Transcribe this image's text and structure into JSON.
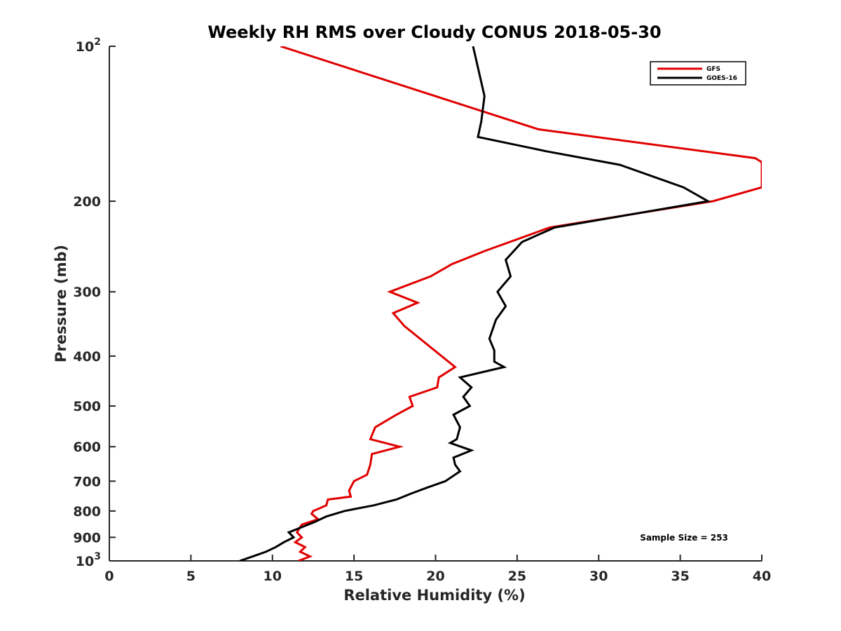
{
  "chart_data": {
    "type": "line",
    "title": "Weekly RH RMS over Cloudy CONUS 2018-05-30",
    "xlabel": "Relative Humidity (%)",
    "ylabel": "Pressure (mb)",
    "xlim": [
      0,
      40
    ],
    "ylim": [
      100,
      1000
    ],
    "y_scale": "log",
    "y_reversed": true,
    "grid": false,
    "legend_position": "top-right",
    "x_ticks": [
      0,
      5,
      10,
      15,
      20,
      25,
      30,
      35,
      40
    ],
    "y_ticks": [
      {
        "value": 100,
        "base": "10",
        "exp": "2"
      },
      {
        "value": 200,
        "label": "200"
      },
      {
        "value": 300,
        "label": "300"
      },
      {
        "value": 400,
        "label": "400"
      },
      {
        "value": 500,
        "label": "500"
      },
      {
        "value": 600,
        "label": "600"
      },
      {
        "value": 700,
        "label": "700"
      },
      {
        "value": 800,
        "label": "800"
      },
      {
        "value": 900,
        "label": "900"
      },
      {
        "value": 1000,
        "base": "10",
        "exp": "3"
      }
    ],
    "series": [
      {
        "name": "GFS",
        "color": "#e00000",
        "points": [
          [
            10.5,
            100
          ],
          [
            26.3,
            145
          ],
          [
            39.6,
            165
          ],
          [
            40.0,
            168
          ],
          [
            40.0,
            188
          ],
          [
            37.0,
            200
          ],
          [
            27.0,
            225
          ],
          [
            23.0,
            250
          ],
          [
            21.0,
            265
          ],
          [
            19.7,
            280
          ],
          [
            17.2,
            300
          ],
          [
            18.9,
            315
          ],
          [
            17.4,
            330
          ],
          [
            18.1,
            350
          ],
          [
            21.2,
            420
          ],
          [
            20.2,
            440
          ],
          [
            20.1,
            460
          ],
          [
            18.4,
            480
          ],
          [
            18.6,
            500
          ],
          [
            17.6,
            520
          ],
          [
            16.3,
            550
          ],
          [
            16.0,
            580
          ],
          [
            17.8,
            600
          ],
          [
            16.1,
            620
          ],
          [
            16.0,
            650
          ],
          [
            15.8,
            680
          ],
          [
            15.0,
            700
          ],
          [
            14.7,
            730
          ],
          [
            14.8,
            750
          ],
          [
            13.4,
            760
          ],
          [
            13.3,
            780
          ],
          [
            12.5,
            800
          ],
          [
            12.4,
            810
          ],
          [
            12.8,
            830
          ],
          [
            11.8,
            850
          ],
          [
            11.5,
            880
          ],
          [
            11.8,
            900
          ],
          [
            11.4,
            920
          ],
          [
            12.0,
            940
          ],
          [
            11.7,
            960
          ],
          [
            12.3,
            980
          ],
          [
            11.6,
            1000
          ]
        ]
      },
      {
        "name": "GOES-16",
        "color": "#000000",
        "points": [
          [
            22.3,
            100
          ],
          [
            23.0,
            125
          ],
          [
            22.8,
            140
          ],
          [
            22.6,
            150
          ],
          [
            26.8,
            160
          ],
          [
            31.3,
            170
          ],
          [
            35.2,
            188
          ],
          [
            36.7,
            200
          ],
          [
            27.3,
            225
          ],
          [
            25.3,
            240
          ],
          [
            24.3,
            260
          ],
          [
            24.6,
            280
          ],
          [
            23.8,
            300
          ],
          [
            24.3,
            320
          ],
          [
            23.7,
            340
          ],
          [
            23.3,
            370
          ],
          [
            23.6,
            390
          ],
          [
            23.6,
            410
          ],
          [
            24.2,
            420
          ],
          [
            21.5,
            440
          ],
          [
            22.2,
            460
          ],
          [
            21.7,
            480
          ],
          [
            22.1,
            500
          ],
          [
            21.1,
            520
          ],
          [
            21.5,
            550
          ],
          [
            21.3,
            580
          ],
          [
            20.9,
            590
          ],
          [
            22.2,
            610
          ],
          [
            21.1,
            630
          ],
          [
            21.2,
            650
          ],
          [
            21.5,
            670
          ],
          [
            20.6,
            700
          ],
          [
            19.5,
            720
          ],
          [
            18.5,
            740
          ],
          [
            17.6,
            760
          ],
          [
            16.2,
            780
          ],
          [
            14.4,
            800
          ],
          [
            13.3,
            820
          ],
          [
            12.6,
            840
          ],
          [
            11.8,
            860
          ],
          [
            11.0,
            880
          ],
          [
            11.3,
            900
          ],
          [
            10.7,
            920
          ],
          [
            10.2,
            940
          ],
          [
            9.6,
            960
          ],
          [
            8.8,
            980
          ],
          [
            8.0,
            1000
          ]
        ]
      }
    ],
    "annotation": "Sample Size = 253"
  }
}
